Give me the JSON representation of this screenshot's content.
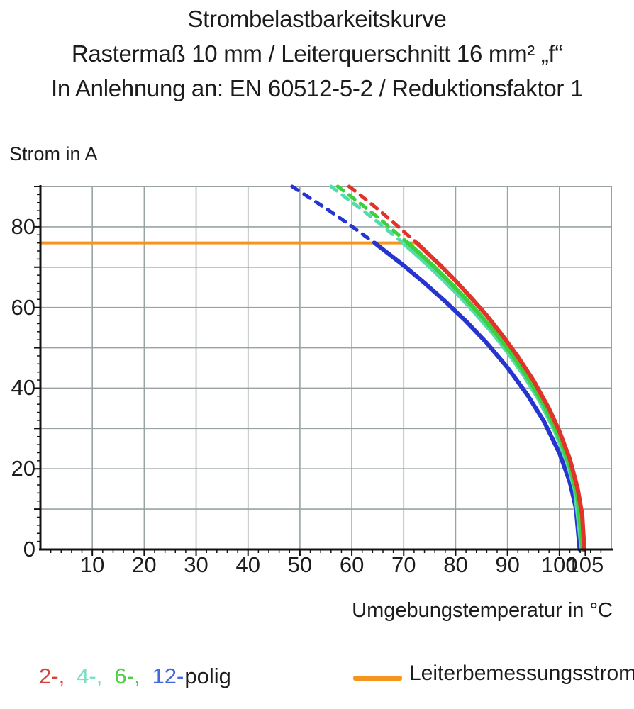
{
  "title": {
    "line1": "Strombelastbarkeitskurve",
    "line2": "Rastermaß 10 mm / Leiterquerschnitt 16 mm² „f“",
    "line3": "In Anlehnung an: EN 60512-5-2 / Reduktionsfaktor 1"
  },
  "colors": {
    "grid": "#99A3A4",
    "axis": "#111111",
    "rated_orange": "#F5941F",
    "series_red": "#E0342A",
    "series_teal": "#55DCAC",
    "series_green": "#3ECF3C",
    "series_blue": "#2634D0",
    "legend_red": "#D9413D",
    "legend_teal": "#7ADFC5",
    "legend_green": "#52CC49",
    "legend_blue": "#4467DB"
  },
  "legend": {
    "poles": {
      "items": [
        {
          "label": "2-,",
          "color": "#D9413D"
        },
        {
          "label": "4-,",
          "color": "#7ADFC5"
        },
        {
          "label": "6-,",
          "color": "#52CC49"
        },
        {
          "label": "12-",
          "color": "#4467DB"
        }
      ],
      "suffix": "polig"
    },
    "rated": {
      "label": "Leiterbemessungsstrom",
      "color": "#F5941F"
    }
  },
  "chart_data": {
    "type": "line",
    "title": "Strombelastbarkeitskurve",
    "xlabel": "Umgebungstemperatur in °C",
    "ylabel": "Strom in A",
    "xlim": [
      0,
      110
    ],
    "ylim": [
      0,
      90
    ],
    "grid": true,
    "grid_step_x": 10,
    "grid_step_y": 10,
    "minor_tick_step": 2,
    "x_tick_labels": [
      10,
      20,
      30,
      40,
      50,
      60,
      70,
      80,
      90,
      100,
      105
    ],
    "y_tick_labels": [
      0,
      20,
      40,
      60,
      80
    ],
    "rated_current_line": {
      "name": "Leiterbemessungsstrom",
      "value_A": 76,
      "color": "#F5941F",
      "points": [
        [
          0,
          76
        ],
        [
          72.5,
          76
        ]
      ]
    },
    "series_note": "dashed_points = region above Leiterbemessungsstrom (76 A), solid_points = derating curve below it",
    "series": [
      {
        "name": "12-polig",
        "color": "#2634D0",
        "dashed_points": [
          [
            48.5,
            90
          ],
          [
            52,
            87.1
          ],
          [
            56,
            83.7
          ],
          [
            60,
            80.1
          ],
          [
            63,
            77.3
          ],
          [
            64.4,
            76
          ]
        ],
        "solid_points": [
          [
            64.4,
            76
          ],
          [
            66,
            74.4
          ],
          [
            70,
            70.4
          ],
          [
            74,
            66.1
          ],
          [
            78,
            61.5
          ],
          [
            82,
            56.6
          ],
          [
            86,
            51.2
          ],
          [
            90,
            45.1
          ],
          [
            94,
            38.0
          ],
          [
            97,
            31.8
          ],
          [
            100,
            23.9
          ],
          [
            102,
            16.7
          ],
          [
            103.2,
            10.1
          ],
          [
            103.9,
            0
          ]
        ]
      },
      {
        "name": "4-polig",
        "color": "#55DCAC",
        "dashed_points": [
          [
            56,
            90
          ],
          [
            59,
            87.1
          ],
          [
            62,
            84.2
          ],
          [
            65,
            81.2
          ],
          [
            68,
            78.0
          ],
          [
            69.9,
            76
          ]
        ],
        "solid_points": [
          [
            69.9,
            76
          ],
          [
            72,
            73.6
          ],
          [
            75,
            70.1
          ],
          [
            78,
            66.4
          ],
          [
            81,
            62.5
          ],
          [
            84,
            58.3
          ],
          [
            87,
            53.9
          ],
          [
            90,
            49.0
          ],
          [
            93,
            43.5
          ],
          [
            96,
            37.3
          ],
          [
            99,
            29.8
          ],
          [
            101.5,
            21.7
          ],
          [
            103,
            14.8
          ],
          [
            104.3,
            0
          ]
        ]
      },
      {
        "name": "6-polig",
        "color": "#3ECF3C",
        "dashed_points": [
          [
            57.3,
            90
          ],
          [
            60,
            87.4
          ],
          [
            63,
            84.4
          ],
          [
            66,
            81.3
          ],
          [
            69,
            78.0
          ],
          [
            70.8,
            76
          ]
        ],
        "solid_points": [
          [
            70.8,
            76
          ],
          [
            73,
            73.5
          ],
          [
            76,
            69.9
          ],
          [
            79,
            66.1
          ],
          [
            82,
            62.1
          ],
          [
            85,
            57.8
          ],
          [
            88,
            53.2
          ],
          [
            91,
            48.1
          ],
          [
            94,
            42.4
          ],
          [
            97,
            35.9
          ],
          [
            100,
            27.8
          ],
          [
            102,
            20.7
          ],
          [
            103.5,
            13.1
          ],
          [
            104.5,
            0
          ]
        ]
      },
      {
        "name": "2-polig",
        "color": "#E0342A",
        "dashed_points": [
          [
            59.5,
            90
          ],
          [
            62,
            87.5
          ],
          [
            65,
            84.4
          ],
          [
            68,
            81.1
          ],
          [
            71,
            77.7
          ],
          [
            72.5,
            76
          ]
        ],
        "solid_points": [
          [
            72.5,
            76
          ],
          [
            74,
            74.2
          ],
          [
            77,
            70.5
          ],
          [
            80,
            66.6
          ],
          [
            83,
            62.4
          ],
          [
            86,
            58.0
          ],
          [
            89,
            53.1
          ],
          [
            92,
            47.8
          ],
          [
            95,
            41.9
          ],
          [
            98,
            34.9
          ],
          [
            100,
            29.3
          ],
          [
            102,
            22.4
          ],
          [
            103.5,
            15.2
          ],
          [
            104.4,
            8.5
          ],
          [
            104.8,
            0
          ]
        ]
      }
    ]
  }
}
